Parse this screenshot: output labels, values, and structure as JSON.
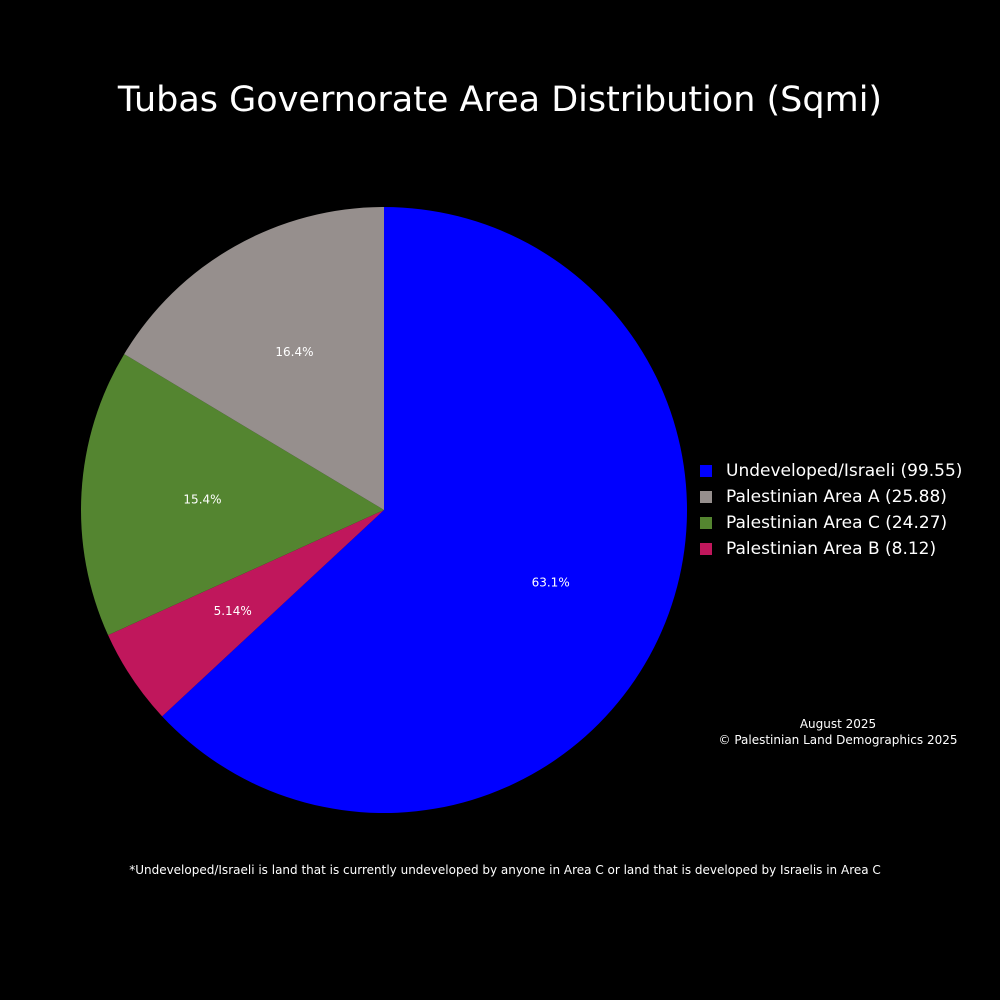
{
  "chart_data": {
    "type": "pie",
    "title": "Tubas Governorate Area Distribution (Sqmi)",
    "slices": [
      {
        "label": "Undeveloped/Israeli",
        "legend": "Undeveloped/Israeli (99.55)",
        "value": 99.55,
        "percent_label": "63.1%",
        "color": "#0000ff"
      },
      {
        "label": "Palestinian Area A",
        "legend": "Palestinian Area A (25.88)",
        "value": 25.88,
        "percent_label": "16.4%",
        "color": "#968f8d"
      },
      {
        "label": "Palestinian Area C",
        "legend": "Palestinian Area C (24.27)",
        "value": 24.27,
        "percent_label": "15.4%",
        "color": "#548530"
      },
      {
        "label": "Palestinian Area B",
        "legend": "Palestinian Area B (8.12)",
        "value": 8.12,
        "percent_label": "5.14%",
        "color": "#c0175c"
      }
    ],
    "slice_order": [
      0,
      3,
      2,
      1
    ],
    "direction": "clockwise",
    "legend_position": "right",
    "background": "#000000",
    "text_color": "#ffffff"
  },
  "annotation": {
    "date": "August 2025",
    "copyright": "© Palestinian Land Demographics 2025"
  },
  "footnote": "*Undeveloped/Israeli is land that is currently undeveloped by anyone in Area C or land that is developed by Israelis in Area C"
}
